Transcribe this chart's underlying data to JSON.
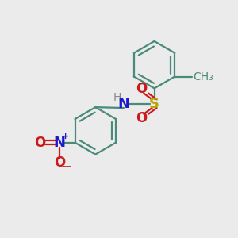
{
  "background_color": "#ebebeb",
  "bond_color": "#4a8a7a",
  "bond_width": 1.6,
  "S_color": "#b8a800",
  "N_color": "#1a1acc",
  "O_color": "#cc1a1a",
  "H_color": "#888888",
  "text_fontsize": 12,
  "small_fontsize": 9,
  "figsize": [
    3.0,
    3.0
  ],
  "dpi": 100,
  "xlim": [
    0,
    10
  ],
  "ylim": [
    0,
    10
  ]
}
